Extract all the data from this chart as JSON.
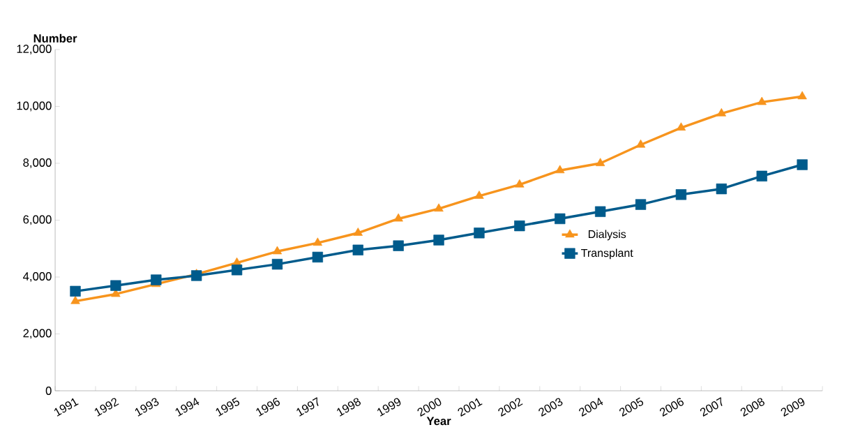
{
  "chart_data": {
    "type": "line",
    "ylabel": "Number",
    "xlabel": "Year",
    "categories": [
      "1991",
      "1992",
      "1993",
      "1994",
      "1995",
      "1996",
      "1997",
      "1998",
      "1999",
      "2000",
      "2001",
      "2002",
      "2003",
      "2004",
      "2005",
      "2006",
      "2007",
      "2008",
      "2009"
    ],
    "series": [
      {
        "name": "Dialysis",
        "color": "#f7941d",
        "marker": "triangle",
        "values": [
          3150,
          3400,
          3750,
          4100,
          4500,
          4900,
          5200,
          5550,
          6050,
          6400,
          6850,
          7250,
          7750,
          8000,
          8650,
          9250,
          9750,
          10150,
          10350
        ]
      },
      {
        "name": "Transplant",
        "color": "#005b8c",
        "marker": "square",
        "values": [
          3500,
          3700,
          3900,
          4050,
          4250,
          4450,
          4700,
          4950,
          5100,
          5300,
          5550,
          5800,
          6050,
          6300,
          6550,
          6900,
          7100,
          7550,
          7950
        ]
      }
    ],
    "ylim": [
      0,
      12000
    ],
    "yticks": [
      0,
      {
        "value": 2000,
        "label": "2,000"
      },
      {
        "value": 4000,
        "label": "4,000"
      },
      {
        "value": 6000,
        "label": "6,000"
      },
      {
        "value": 8000,
        "label": "8,000"
      },
      {
        "value": 10000,
        "label": "10,000"
      },
      {
        "value": 12000,
        "label": "12,000"
      }
    ],
    "grid": false,
    "legend": "right",
    "line_style": "solid"
  }
}
